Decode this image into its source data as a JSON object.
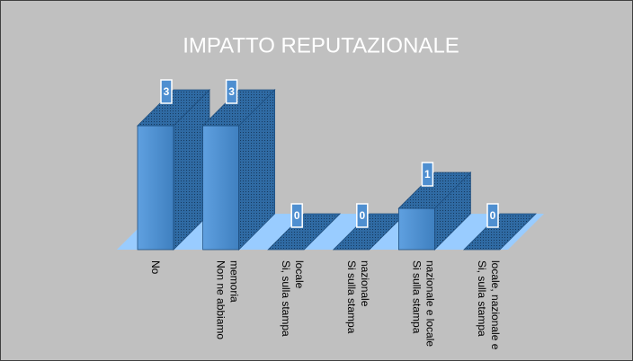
{
  "chart_data": {
    "type": "bar3d",
    "title": "IMPATTO REPUTAZIONALE",
    "categories": [
      "No",
      "Non ne abbiamo memoria",
      "Si, sulla stampa locale",
      "Si sulla stampa nazionale",
      "Si sulla stampa nazionale e locale",
      "Si, sulla stampa locale, nazionale e"
    ],
    "values": [
      3,
      3,
      0,
      0,
      1,
      0
    ],
    "color": "#4f8fd0",
    "floor_color": "#99ccff",
    "background": "#c0c0c0"
  }
}
